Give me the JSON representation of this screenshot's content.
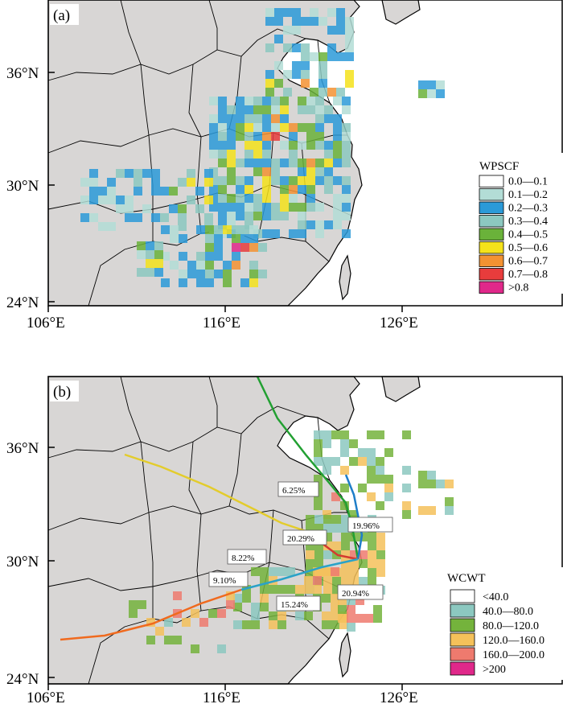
{
  "panel_a": {
    "label": "(a)",
    "x_ticks": [
      "106°E",
      "116°E",
      "126°E"
    ],
    "y_ticks": [
      "36°N",
      "30°N",
      "24°N"
    ],
    "legend_title": "WPSCF",
    "legend": [
      {
        "label": "0.0—0.1",
        "color": "#ffffff"
      },
      {
        "label": "0.1—0.2",
        "color": "#b3ddd6"
      },
      {
        "label": "0.2—0.3",
        "color": "#2b9ad8"
      },
      {
        "label": "0.3—0.4",
        "color": "#8cc8c0"
      },
      {
        "label": "0.4—0.5",
        "color": "#6ab23a"
      },
      {
        "label": "0.5—0.6",
        "color": "#f5e21b"
      },
      {
        "label": "0.6—0.7",
        "color": "#f39232"
      },
      {
        "label": "0.7—0.8",
        "color": "#e83c3c"
      },
      {
        "label": ">0.8",
        "color": "#e0288a"
      }
    ]
  },
  "panel_b": {
    "label": "(b)",
    "x_ticks": [
      "106°E",
      "116°E",
      "126°E"
    ],
    "y_ticks": [
      "36°N",
      "30°N",
      "24°N"
    ],
    "legend_title": "WCWT",
    "legend": [
      {
        "label": "<40.0",
        "color": "#ffffff"
      },
      {
        "label": "40.0—80.0",
        "color": "#8cc8c0"
      },
      {
        "label": "80.0—120.0",
        "color": "#74b33c"
      },
      {
        "label": "120.0—160.0",
        "color": "#f5c15a"
      },
      {
        "label": "160.0—200.0",
        "color": "#ee7a6e"
      },
      {
        "label": ">200",
        "color": "#e0288a"
      }
    ],
    "trajectories": [
      {
        "label": "6.25%",
        "color": "#22a032"
      },
      {
        "label": "19.96%",
        "color": "#1f7ec8"
      },
      {
        "label": "20.29%",
        "color": "#8a8a8a"
      },
      {
        "label": "8.22%",
        "color": "#e3cc2c"
      },
      {
        "label": "9.10%",
        "color": "#d43a2f"
      },
      {
        "label": "20.94%",
        "color": "#e3862c"
      },
      {
        "label": "15.24%",
        "color": "#2aa2c8"
      }
    ]
  }
}
